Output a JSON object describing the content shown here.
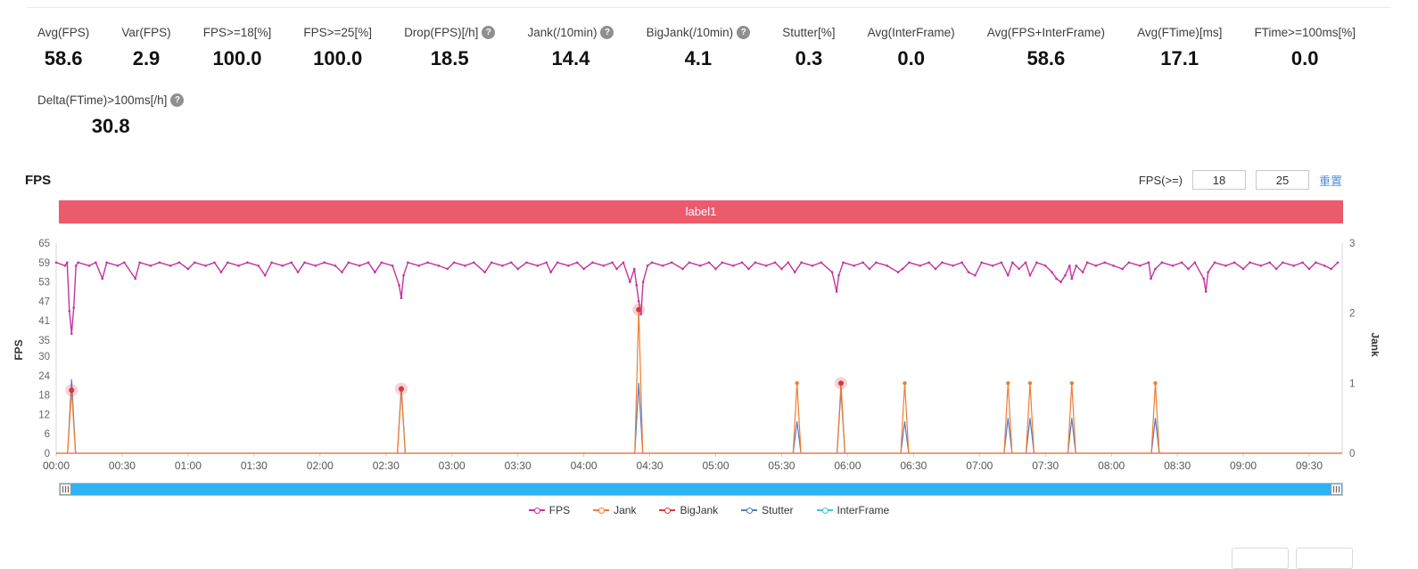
{
  "stats": {
    "row1": [
      {
        "label": "Avg(FPS)",
        "value": "58.6",
        "help": false
      },
      {
        "label": "Var(FPS)",
        "value": "2.9",
        "help": false
      },
      {
        "label": "FPS>=18[%]",
        "value": "100.0",
        "help": false
      },
      {
        "label": "FPS>=25[%]",
        "value": "100.0",
        "help": false
      },
      {
        "label": "Drop(FPS)[/h]",
        "value": "18.5",
        "help": true
      },
      {
        "label": "Jank(/10min)",
        "value": "14.4",
        "help": true
      },
      {
        "label": "BigJank(/10min)",
        "value": "4.1",
        "help": true
      },
      {
        "label": "Stutter[%]",
        "value": "0.3",
        "help": false
      },
      {
        "label": "Avg(InterFrame)",
        "value": "0.0",
        "help": false
      },
      {
        "label": "Avg(FPS+InterFrame)",
        "value": "58.6",
        "help": false
      },
      {
        "label": "Avg(FTime)[ms]",
        "value": "17.1",
        "help": false
      },
      {
        "label": "FTime>=100ms[%]",
        "value": "0.0",
        "help": false
      }
    ],
    "row2": [
      {
        "label": "Delta(FTime)>100ms[/h]",
        "value": "30.8",
        "help": true
      }
    ]
  },
  "fps_section": {
    "title": "FPS",
    "filter_label": "FPS(>=)",
    "threshold1": "18",
    "threshold2": "25",
    "reset_label": "重置",
    "banner_label": "label1",
    "banner_color": "#ec5b6c"
  },
  "chart_data": {
    "type": "line",
    "title": "FPS",
    "x_labels": [
      "00:00",
      "00:30",
      "01:00",
      "01:30",
      "02:00",
      "02:30",
      "03:00",
      "03:30",
      "04:00",
      "04:30",
      "05:00",
      "05:30",
      "06:00",
      "06:30",
      "07:00",
      "07:30",
      "08:00",
      "08:30",
      "09:00",
      "09:30"
    ],
    "x_tick_seconds": [
      0,
      30,
      60,
      90,
      120,
      150,
      180,
      210,
      240,
      270,
      300,
      330,
      360,
      390,
      420,
      450,
      480,
      510,
      540,
      570
    ],
    "x_range": [
      0,
      585
    ],
    "left_axis": {
      "label": "FPS",
      "ticks": [
        0,
        6,
        12,
        18,
        24,
        30,
        35,
        41,
        47,
        53,
        59,
        65
      ],
      "range": [
        0,
        65
      ]
    },
    "right_axis": {
      "label": "Jank",
      "ticks": [
        0,
        1,
        2,
        3
      ],
      "range": [
        0,
        3
      ]
    },
    "grid": false,
    "legend_position": "bottom",
    "series": [
      {
        "name": "FPS",
        "color": "#c233a0",
        "axis": "left",
        "style": "line-dot",
        "points": [
          [
            0,
            59
          ],
          [
            4,
            58
          ],
          [
            5,
            59
          ],
          [
            6,
            44
          ],
          [
            7,
            37
          ],
          [
            8,
            45
          ],
          [
            9,
            58
          ],
          [
            10,
            59
          ],
          [
            15,
            58
          ],
          [
            18,
            59
          ],
          [
            21,
            54
          ],
          [
            23,
            59
          ],
          [
            28,
            58
          ],
          [
            31,
            59
          ],
          [
            36,
            54
          ],
          [
            38,
            59
          ],
          [
            43,
            58
          ],
          [
            47,
            59
          ],
          [
            52,
            58
          ],
          [
            56,
            59
          ],
          [
            60,
            57
          ],
          [
            63,
            59
          ],
          [
            68,
            58
          ],
          [
            72,
            59
          ],
          [
            75,
            56
          ],
          [
            78,
            59
          ],
          [
            83,
            58
          ],
          [
            87,
            59
          ],
          [
            92,
            58
          ],
          [
            95,
            55
          ],
          [
            98,
            59
          ],
          [
            103,
            58
          ],
          [
            107,
            59
          ],
          [
            110,
            56
          ],
          [
            113,
            59
          ],
          [
            118,
            58
          ],
          [
            122,
            59
          ],
          [
            127,
            58
          ],
          [
            130,
            56
          ],
          [
            133,
            59
          ],
          [
            138,
            58
          ],
          [
            142,
            59
          ],
          [
            145,
            56
          ],
          [
            148,
            59
          ],
          [
            153,
            58
          ],
          [
            156,
            52
          ],
          [
            157,
            48
          ],
          [
            158,
            55
          ],
          [
            160,
            59
          ],
          [
            165,
            58
          ],
          [
            169,
            59
          ],
          [
            174,
            58
          ],
          [
            178,
            57
          ],
          [
            181,
            59
          ],
          [
            186,
            58
          ],
          [
            190,
            59
          ],
          [
            195,
            56
          ],
          [
            198,
            59
          ],
          [
            203,
            58
          ],
          [
            207,
            59
          ],
          [
            210,
            57
          ],
          [
            214,
            59
          ],
          [
            219,
            58
          ],
          [
            223,
            59
          ],
          [
            225,
            56
          ],
          [
            228,
            59
          ],
          [
            233,
            58
          ],
          [
            237,
            59
          ],
          [
            240,
            57
          ],
          [
            244,
            59
          ],
          [
            249,
            58
          ],
          [
            253,
            59
          ],
          [
            255,
            57
          ],
          [
            258,
            59
          ],
          [
            261,
            53
          ],
          [
            263,
            57
          ],
          [
            264,
            52
          ],
          [
            265,
            47
          ],
          [
            266,
            43
          ],
          [
            267,
            53
          ],
          [
            269,
            58
          ],
          [
            271,
            59
          ],
          [
            276,
            58
          ],
          [
            280,
            59
          ],
          [
            285,
            57
          ],
          [
            288,
            59
          ],
          [
            293,
            58
          ],
          [
            297,
            59
          ],
          [
            300,
            57
          ],
          [
            303,
            59
          ],
          [
            308,
            58
          ],
          [
            312,
            59
          ],
          [
            315,
            57
          ],
          [
            318,
            59
          ],
          [
            323,
            58
          ],
          [
            327,
            59
          ],
          [
            330,
            57
          ],
          [
            333,
            59
          ],
          [
            336,
            56
          ],
          [
            339,
            59
          ],
          [
            344,
            58
          ],
          [
            348,
            59
          ],
          [
            353,
            56
          ],
          [
            355,
            50
          ],
          [
            356,
            55
          ],
          [
            358,
            59
          ],
          [
            363,
            58
          ],
          [
            367,
            59
          ],
          [
            370,
            57
          ],
          [
            373,
            59
          ],
          [
            378,
            58
          ],
          [
            383,
            56
          ],
          [
            385,
            57
          ],
          [
            388,
            59
          ],
          [
            393,
            58
          ],
          [
            397,
            59
          ],
          [
            400,
            57
          ],
          [
            403,
            59
          ],
          [
            408,
            58
          ],
          [
            412,
            59
          ],
          [
            415,
            56
          ],
          [
            418,
            55
          ],
          [
            421,
            59
          ],
          [
            426,
            58
          ],
          [
            430,
            59
          ],
          [
            433,
            55
          ],
          [
            435,
            59
          ],
          [
            438,
            57
          ],
          [
            441,
            59
          ],
          [
            443,
            55
          ],
          [
            446,
            59
          ],
          [
            450,
            58
          ],
          [
            453,
            56
          ],
          [
            455,
            54
          ],
          [
            457,
            53
          ],
          [
            459,
            55
          ],
          [
            461,
            58
          ],
          [
            462,
            54
          ],
          [
            464,
            58
          ],
          [
            467,
            56
          ],
          [
            469,
            59
          ],
          [
            473,
            58
          ],
          [
            477,
            59
          ],
          [
            481,
            58
          ],
          [
            485,
            57
          ],
          [
            488,
            59
          ],
          [
            493,
            58
          ],
          [
            497,
            59
          ],
          [
            498,
            54
          ],
          [
            500,
            57
          ],
          [
            503,
            59
          ],
          [
            508,
            58
          ],
          [
            512,
            59
          ],
          [
            515,
            57
          ],
          [
            518,
            59
          ],
          [
            522,
            54
          ],
          [
            523,
            50
          ],
          [
            524,
            56
          ],
          [
            527,
            59
          ],
          [
            532,
            58
          ],
          [
            536,
            59
          ],
          [
            540,
            57
          ],
          [
            543,
            59
          ],
          [
            548,
            58
          ],
          [
            552,
            59
          ],
          [
            555,
            57
          ],
          [
            558,
            59
          ],
          [
            563,
            58
          ],
          [
            567,
            59
          ],
          [
            570,
            57
          ],
          [
            573,
            59
          ],
          [
            577,
            58
          ],
          [
            580,
            57
          ],
          [
            583,
            59
          ]
        ]
      },
      {
        "name": "Jank",
        "color": "#ef7d31",
        "axis": "right",
        "style": "spike-dot",
        "points": [
          [
            7,
            0.9
          ],
          [
            157,
            0.9
          ],
          [
            265,
            2.05
          ],
          [
            337,
            1.0
          ],
          [
            357,
            1.0
          ],
          [
            386,
            1.0
          ],
          [
            433,
            1.0
          ],
          [
            443,
            1.0
          ],
          [
            462,
            1.0
          ],
          [
            500,
            1.0
          ]
        ]
      },
      {
        "name": "BigJank",
        "color": "#d63841",
        "axis": "right",
        "style": "baseline-marker",
        "points": [
          [
            7,
            0.9
          ],
          [
            157,
            0.92
          ],
          [
            265,
            2.05
          ],
          [
            357,
            1.0
          ]
        ]
      },
      {
        "name": "Stutter",
        "color": "#587abe",
        "axis": "right",
        "style": "spike",
        "points": [
          [
            7,
            1.05
          ],
          [
            157,
            0.95
          ],
          [
            265,
            1.0
          ],
          [
            337,
            0.45
          ],
          [
            357,
            0.9
          ],
          [
            386,
            0.45
          ],
          [
            433,
            0.5
          ],
          [
            443,
            0.5
          ],
          [
            462,
            0.5
          ],
          [
            500,
            0.5
          ]
        ]
      },
      {
        "name": "InterFrame",
        "color": "#41c3d8",
        "axis": "right",
        "style": "baseline",
        "points": []
      }
    ]
  }
}
